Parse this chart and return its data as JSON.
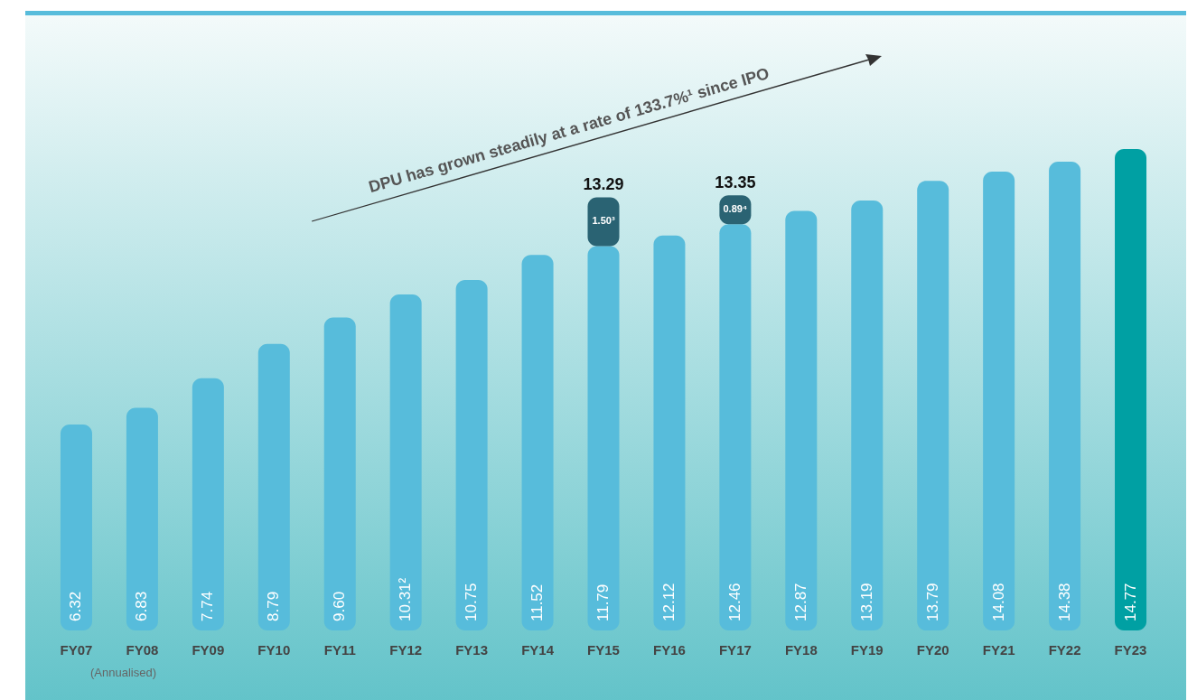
{
  "chart_data": {
    "type": "bar",
    "stacked": true,
    "categories": [
      "FY07",
      "FY08",
      "FY09",
      "FY10",
      "FY11",
      "FY12",
      "FY13",
      "FY14",
      "FY15",
      "FY16",
      "FY17",
      "FY18",
      "FY19",
      "FY20",
      "FY21",
      "FY22",
      "FY23"
    ],
    "series": [
      {
        "colors": [
          "#57bcdb",
          "#57bcdb",
          "#57bcdb",
          "#57bcdb",
          "#57bcdb",
          "#57bcdb",
          "#57bcdb",
          "#57bcdb",
          "#57bcdb",
          "#57bcdb",
          "#57bcdb",
          "#57bcdb",
          "#57bcdb",
          "#57bcdb",
          "#57bcdb",
          "#57bcdb",
          "#00a0a3"
        ],
        "values": [
          6.32,
          6.83,
          7.74,
          8.79,
          9.6,
          10.31,
          10.75,
          11.52,
          11.79,
          12.12,
          12.46,
          12.87,
          13.19,
          13.79,
          14.08,
          14.38,
          14.77
        ],
        "value_labels": [
          "6.32",
          "6.83",
          "7.74",
          "8.79",
          "9.60",
          "10.31²",
          "10.75",
          "11.52",
          "11.79",
          "12.12",
          "12.46",
          "12.87",
          "13.19",
          "13.79",
          "14.08",
          "14.38",
          "14.77"
        ]
      },
      {
        "color": "#2a6373",
        "values": [
          null,
          null,
          null,
          null,
          null,
          null,
          null,
          null,
          1.5,
          null,
          0.89,
          null,
          null,
          null,
          null,
          null,
          null
        ],
        "value_labels": [
          null,
          null,
          null,
          null,
          null,
          null,
          null,
          null,
          "1.50³",
          null,
          "0.89⁴",
          null,
          null,
          null,
          null,
          null,
          null
        ]
      }
    ],
    "totals": [
      null,
      null,
      null,
      null,
      null,
      null,
      null,
      null,
      "13.29",
      null,
      "13.35",
      null,
      null,
      null,
      null,
      null,
      null
    ],
    "annotations": [
      "DPU has grown steadily at a rate of 133.7%¹ since IPO",
      "(Annualised)"
    ]
  }
}
